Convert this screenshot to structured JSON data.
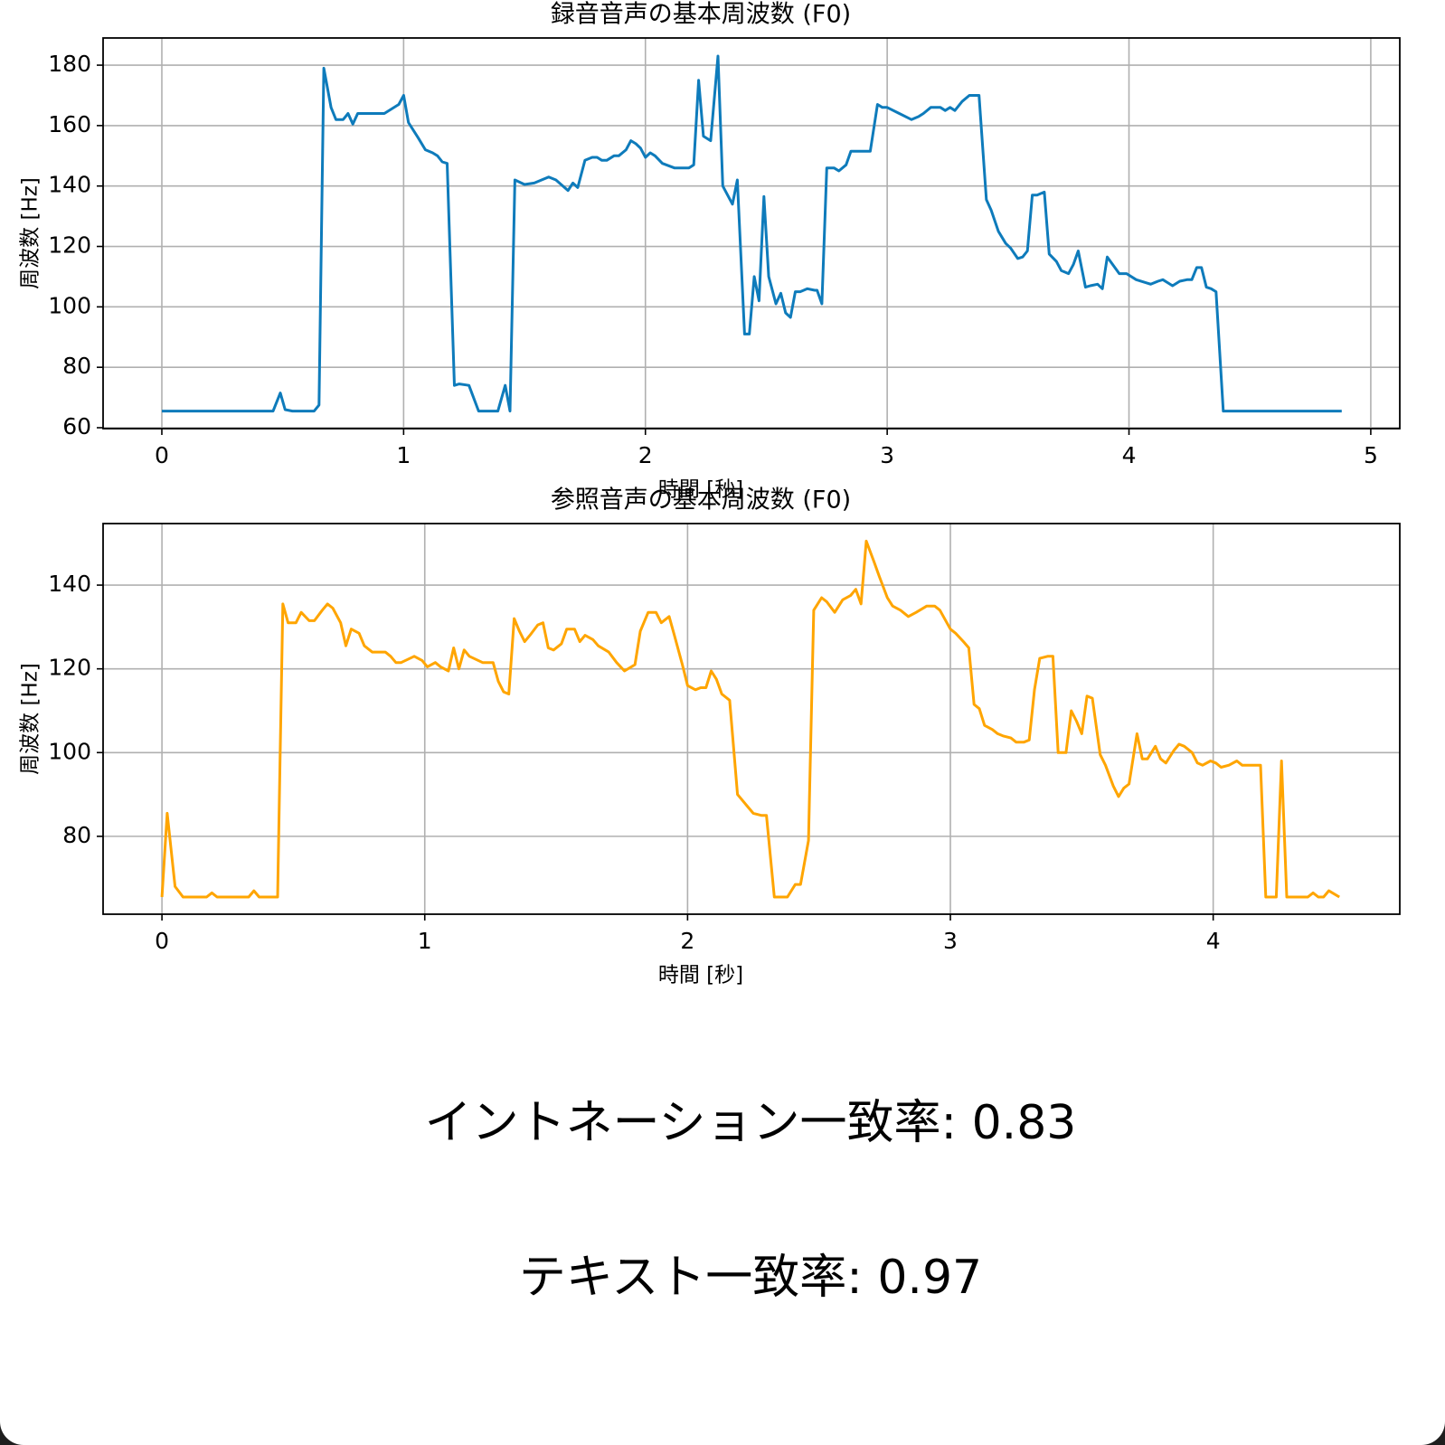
{
  "chart_data": [
    {
      "type": "line",
      "title": "録音音声の基本周波数 (F0)",
      "x_label": "時間 [秒]",
      "y_label": "周波数 [Hz]",
      "color": "#0e7bbb",
      "grid": true,
      "xlim": [
        -0.243,
        5.12
      ],
      "ylim": [
        59.7,
        189
      ],
      "xticks": [
        0,
        1,
        2,
        3,
        4,
        5
      ],
      "yticks": [
        60,
        80,
        100,
        120,
        140,
        160,
        180
      ],
      "x": [
        0,
        0.46,
        0.49,
        0.51,
        0.54,
        0.63,
        0.65,
        0.67,
        0.7,
        0.72,
        0.75,
        0.77,
        0.79,
        0.81,
        0.9,
        0.92,
        0.98,
        1.0,
        1.02,
        1.06,
        1.09,
        1.12,
        1.14,
        1.16,
        1.18,
        1.21,
        1.23,
        1.27,
        1.31,
        1.39,
        1.42,
        1.44,
        1.46,
        1.5,
        1.54,
        1.6,
        1.63,
        1.68,
        1.7,
        1.72,
        1.75,
        1.78,
        1.8,
        1.82,
        1.84,
        1.87,
        1.89,
        1.92,
        1.94,
        1.96,
        1.98,
        2.0,
        2.02,
        2.04,
        2.07,
        2.12,
        2.16,
        2.18,
        2.2,
        2.22,
        2.24,
        2.27,
        2.3,
        2.32,
        2.36,
        2.38,
        2.41,
        2.43,
        2.45,
        2.47,
        2.49,
        2.51,
        2.54,
        2.56,
        2.58,
        2.6,
        2.62,
        2.64,
        2.67,
        2.7,
        2.71,
        2.73,
        2.75,
        2.78,
        2.8,
        2.83,
        2.85,
        2.9,
        2.93,
        2.96,
        2.98,
        3.0,
        3.05,
        3.1,
        3.13,
        3.15,
        3.18,
        3.22,
        3.24,
        3.26,
        3.28,
        3.31,
        3.34,
        3.38,
        3.41,
        3.43,
        3.46,
        3.49,
        3.51,
        3.54,
        3.56,
        3.58,
        3.6,
        3.62,
        3.65,
        3.67,
        3.7,
        3.72,
        3.75,
        3.77,
        3.79,
        3.82,
        3.84,
        3.87,
        3.89,
        3.91,
        3.96,
        3.99,
        4.03,
        4.09,
        4.12,
        4.14,
        4.16,
        4.18,
        4.21,
        4.24,
        4.26,
        4.28,
        4.3,
        4.32,
        4.34,
        4.36,
        4.39,
        4.88
      ],
      "values": [
        65.5,
        65.5,
        71.5,
        66,
        65.5,
        65.5,
        67.5,
        179,
        166,
        162,
        162,
        164,
        160.5,
        164,
        164,
        164,
        167,
        170,
        161,
        156,
        152,
        151,
        150,
        148,
        147.5,
        74,
        74.5,
        74,
        65.5,
        65.5,
        74,
        65.5,
        142,
        140.5,
        141,
        143,
        142,
        138.5,
        141,
        139.5,
        148.5,
        149.5,
        149.5,
        148.5,
        148.5,
        150,
        150,
        152,
        155,
        154,
        152.5,
        149.5,
        151,
        150,
        147.5,
        146,
        146,
        146,
        147,
        175,
        156.5,
        155,
        183,
        140,
        134,
        142,
        91,
        91,
        110,
        102,
        136.5,
        110,
        101,
        104.5,
        98,
        96.5,
        105,
        105,
        106,
        105.5,
        105.5,
        101,
        146,
        146,
        145,
        147,
        151.5,
        151.5,
        151.5,
        167,
        166,
        166,
        164,
        162,
        163,
        164,
        166,
        166,
        165,
        166,
        165,
        168,
        170,
        170,
        135.5,
        132,
        125,
        121,
        119.5,
        116,
        116.5,
        118.5,
        137,
        137,
        138,
        117.5,
        115,
        112,
        111,
        114,
        118.5,
        106.5,
        107,
        107.5,
        106,
        116.5,
        111,
        111,
        109,
        107.5,
        108.5,
        109,
        108,
        107,
        108.5,
        109,
        109,
        113,
        113,
        106.5,
        106,
        105,
        65.5,
        65.5
      ]
    },
    {
      "type": "line",
      "title": "参照音声の基本周波数 (F0)",
      "x_label": "時間 [秒]",
      "y_label": "周波数 [Hz]",
      "color": "#ffa500",
      "grid": true,
      "xlim": [
        -0.224,
        4.71
      ],
      "ylim": [
        61.4,
        154.7
      ],
      "xticks": [
        0,
        1,
        2,
        3,
        4
      ],
      "yticks": [
        80,
        100,
        120,
        140
      ],
      "x": [
        0,
        0.02,
        0.05,
        0.08,
        0.17,
        0.19,
        0.21,
        0.33,
        0.35,
        0.37,
        0.44,
        0.46,
        0.48,
        0.51,
        0.53,
        0.56,
        0.58,
        0.61,
        0.63,
        0.65,
        0.68,
        0.7,
        0.72,
        0.75,
        0.77,
        0.8,
        0.85,
        0.87,
        0.89,
        0.91,
        0.96,
        0.99,
        1.01,
        1.04,
        1.06,
        1.09,
        1.11,
        1.13,
        1.15,
        1.17,
        1.22,
        1.26,
        1.28,
        1.3,
        1.32,
        1.34,
        1.36,
        1.38,
        1.4,
        1.43,
        1.45,
        1.47,
        1.49,
        1.52,
        1.54,
        1.57,
        1.59,
        1.61,
        1.64,
        1.66,
        1.7,
        1.73,
        1.76,
        1.8,
        1.82,
        1.85,
        1.88,
        1.9,
        1.93,
        1.95,
        1.98,
        2.0,
        2.03,
        2.05,
        2.07,
        2.09,
        2.11,
        2.13,
        2.16,
        2.19,
        2.23,
        2.25,
        2.28,
        2.3,
        2.33,
        2.38,
        2.41,
        2.43,
        2.46,
        2.48,
        2.51,
        2.53,
        2.56,
        2.59,
        2.62,
        2.64,
        2.66,
        2.68,
        2.71,
        2.73,
        2.76,
        2.78,
        2.81,
        2.84,
        2.87,
        2.91,
        2.94,
        2.96,
        3.0,
        3.02,
        3.05,
        3.07,
        3.09,
        3.11,
        3.13,
        3.16,
        3.18,
        3.2,
        3.23,
        3.25,
        3.28,
        3.3,
        3.32,
        3.34,
        3.37,
        3.39,
        3.41,
        3.44,
        3.46,
        3.48,
        3.5,
        3.52,
        3.54,
        3.57,
        3.59,
        3.62,
        3.64,
        3.66,
        3.68,
        3.71,
        3.73,
        3.75,
        3.78,
        3.8,
        3.82,
        3.85,
        3.87,
        3.89,
        3.92,
        3.94,
        3.96,
        3.99,
        4.01,
        4.03,
        4.06,
        4.09,
        4.11,
        4.13,
        4.18,
        4.2,
        4.24,
        4.26,
        4.28,
        4.36,
        4.38,
        4.4,
        4.42,
        4.44,
        4.48
      ],
      "values": [
        65.5,
        85.5,
        68,
        65.5,
        65.5,
        66.5,
        65.5,
        65.5,
        67,
        65.5,
        65.5,
        135.5,
        131,
        131,
        133.5,
        131.5,
        131.5,
        134,
        135.5,
        134.5,
        131,
        125.5,
        129.5,
        128.5,
        125.5,
        124,
        124,
        123,
        121.5,
        121.5,
        123,
        122,
        120.5,
        121.5,
        120.5,
        119.5,
        125,
        120,
        124.5,
        123,
        121.5,
        121.5,
        117,
        114.5,
        114,
        132,
        129,
        126.5,
        128,
        130.5,
        131,
        125,
        124.5,
        126,
        129.5,
        129.5,
        126.5,
        128,
        127,
        125.5,
        124,
        121.5,
        119.5,
        121,
        129,
        133.5,
        133.5,
        131,
        132.5,
        128,
        121,
        116,
        115,
        115.5,
        115.5,
        119.5,
        117.5,
        114,
        112.5,
        90,
        87,
        85.5,
        85,
        85,
        65.5,
        65.5,
        68.5,
        68.5,
        79,
        134,
        137,
        136,
        133.5,
        136.5,
        137.5,
        139,
        135.5,
        150.5,
        145.5,
        142,
        137,
        135,
        134,
        132.5,
        133.5,
        135,
        135,
        134,
        129.5,
        128.5,
        126.5,
        125,
        111.5,
        110.5,
        106.5,
        105.5,
        104.5,
        104,
        103.5,
        102.5,
        102.5,
        103,
        115,
        122.5,
        123,
        123,
        100,
        100,
        110,
        107.5,
        104.5,
        113.5,
        113,
        99.5,
        97,
        92,
        89.5,
        91.5,
        92.5,
        104.5,
        98.5,
        98.5,
        101.5,
        98.5,
        97.5,
        100.5,
        102,
        101.5,
        100,
        97.5,
        97,
        98,
        97.5,
        96.5,
        97,
        98,
        97,
        97,
        97,
        65.5,
        65.5,
        98,
        65.5,
        65.5,
        66.5,
        65.5,
        65.5,
        67,
        65.5
      ]
    }
  ],
  "results": [
    "イントネーション一致率: 0.83",
    "テキスト一致率: 0.97"
  ]
}
